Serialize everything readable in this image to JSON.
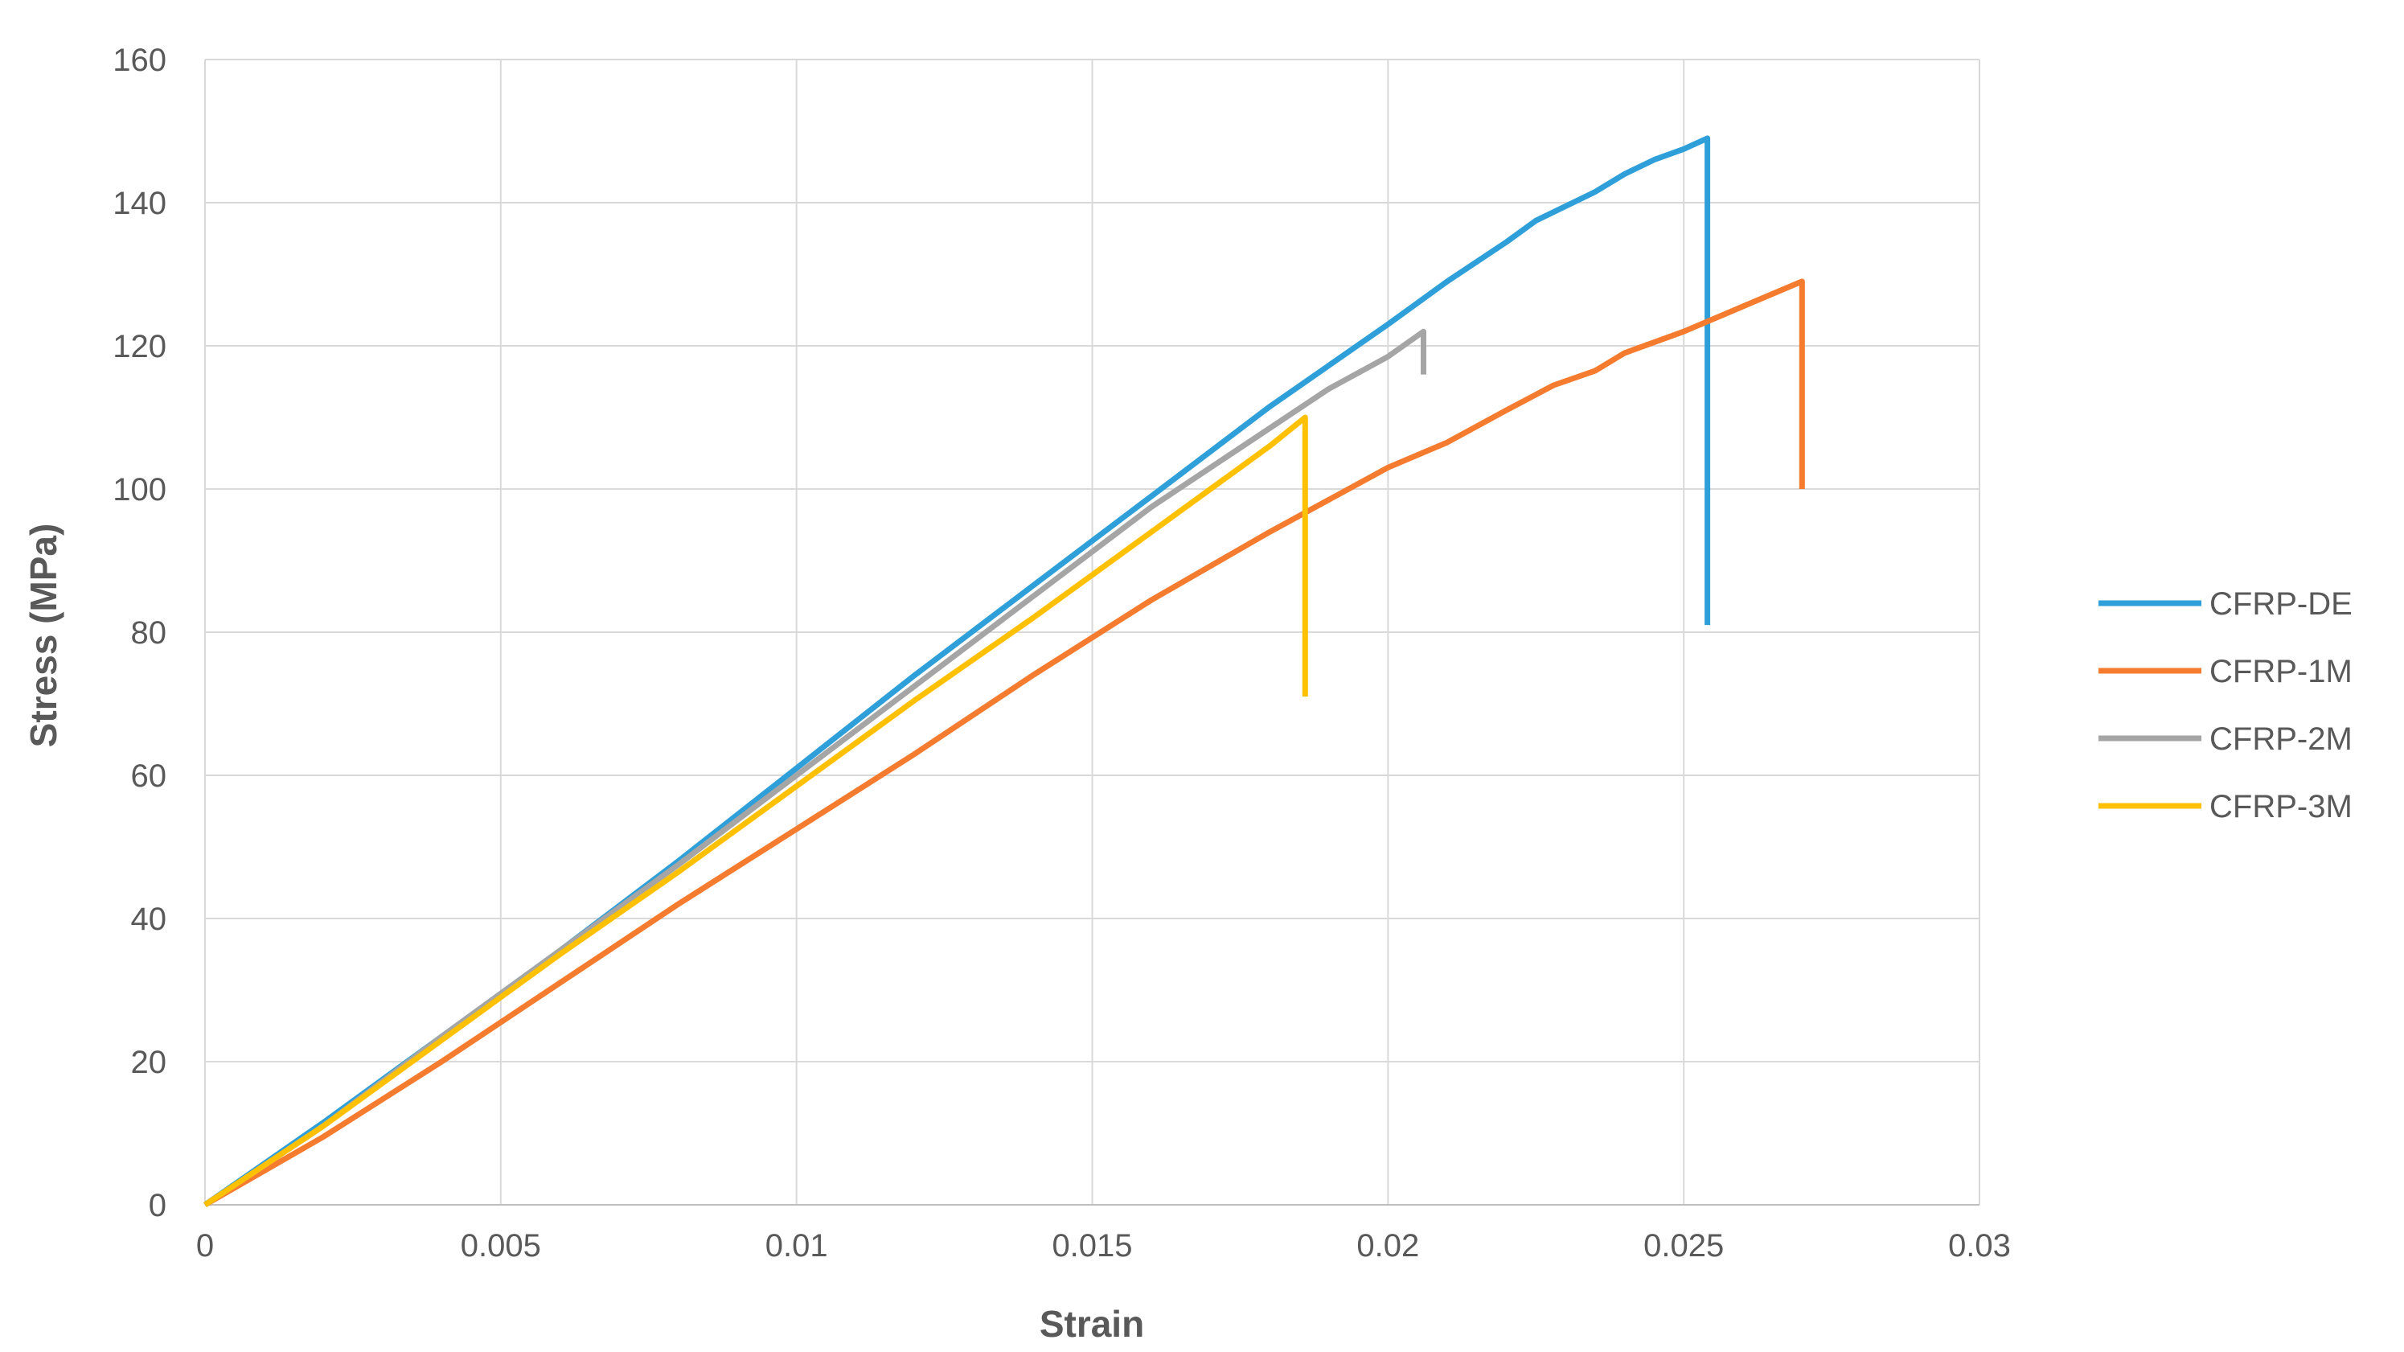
{
  "chart_data": {
    "type": "line",
    "xlabel": "Strain",
    "ylabel": "Stress (MPa)",
    "xlim": [
      0,
      0.03
    ],
    "ylim": [
      0,
      160
    ],
    "xticks": [
      0,
      0.005,
      0.01,
      0.015,
      0.02,
      0.025,
      0.03
    ],
    "xtick_labels": [
      "0",
      "0.005",
      "0.01",
      "0.015",
      "0.02",
      "0.025",
      "0.03"
    ],
    "yticks": [
      0,
      20,
      40,
      60,
      80,
      100,
      120,
      140,
      160
    ],
    "ytick_labels": [
      "0",
      "20",
      "40",
      "60",
      "80",
      "100",
      "120",
      "140",
      "160"
    ],
    "grid": true,
    "legend_position": "right",
    "series": [
      {
        "name": "CFRP-DE",
        "color": "#2e9fd9",
        "points": [
          [
            0,
            0
          ],
          [
            0.002,
            11.5
          ],
          [
            0.004,
            23.5
          ],
          [
            0.006,
            35.5
          ],
          [
            0.008,
            48
          ],
          [
            0.01,
            61
          ],
          [
            0.012,
            74
          ],
          [
            0.014,
            86.5
          ],
          [
            0.016,
            99
          ],
          [
            0.018,
            111.5
          ],
          [
            0.02,
            123
          ],
          [
            0.021,
            129
          ],
          [
            0.022,
            134.5
          ],
          [
            0.0225,
            137.5
          ],
          [
            0.023,
            139.5
          ],
          [
            0.0235,
            141.5
          ],
          [
            0.024,
            144
          ],
          [
            0.0245,
            146
          ],
          [
            0.025,
            147.5
          ],
          [
            0.0254,
            149
          ],
          [
            0.0254,
            81
          ]
        ]
      },
      {
        "name": "CFRP-1M",
        "color": "#f57b2f",
        "points": [
          [
            0,
            0
          ],
          [
            0.002,
            9.5
          ],
          [
            0.004,
            20
          ],
          [
            0.006,
            31
          ],
          [
            0.008,
            42
          ],
          [
            0.01,
            52.5
          ],
          [
            0.012,
            63
          ],
          [
            0.014,
            74
          ],
          [
            0.016,
            84.5
          ],
          [
            0.018,
            94
          ],
          [
            0.02,
            103
          ],
          [
            0.021,
            106.5
          ],
          [
            0.022,
            111
          ],
          [
            0.0228,
            114.5
          ],
          [
            0.0235,
            116.5
          ],
          [
            0.024,
            119
          ],
          [
            0.025,
            122
          ],
          [
            0.026,
            125.5
          ],
          [
            0.027,
            129
          ],
          [
            0.027,
            100
          ]
        ]
      },
      {
        "name": "CFRP-2M",
        "color": "#a5a5a5",
        "points": [
          [
            0,
            0
          ],
          [
            0.002,
            11
          ],
          [
            0.004,
            23.5
          ],
          [
            0.006,
            35.5
          ],
          [
            0.008,
            47.5
          ],
          [
            0.01,
            60
          ],
          [
            0.012,
            72.5
          ],
          [
            0.014,
            85
          ],
          [
            0.016,
            97.5
          ],
          [
            0.018,
            108.5
          ],
          [
            0.019,
            114
          ],
          [
            0.02,
            118.5
          ],
          [
            0.0206,
            122
          ],
          [
            0.0206,
            116
          ]
        ]
      },
      {
        "name": "CFRP-3M",
        "color": "#ffc000",
        "points": [
          [
            0,
            0
          ],
          [
            0.002,
            11
          ],
          [
            0.004,
            23
          ],
          [
            0.006,
            35
          ],
          [
            0.008,
            46.5
          ],
          [
            0.01,
            58.5
          ],
          [
            0.012,
            70.5
          ],
          [
            0.014,
            82
          ],
          [
            0.016,
            94
          ],
          [
            0.017,
            100
          ],
          [
            0.018,
            106
          ],
          [
            0.0186,
            110
          ],
          [
            0.0186,
            71
          ]
        ]
      }
    ]
  }
}
